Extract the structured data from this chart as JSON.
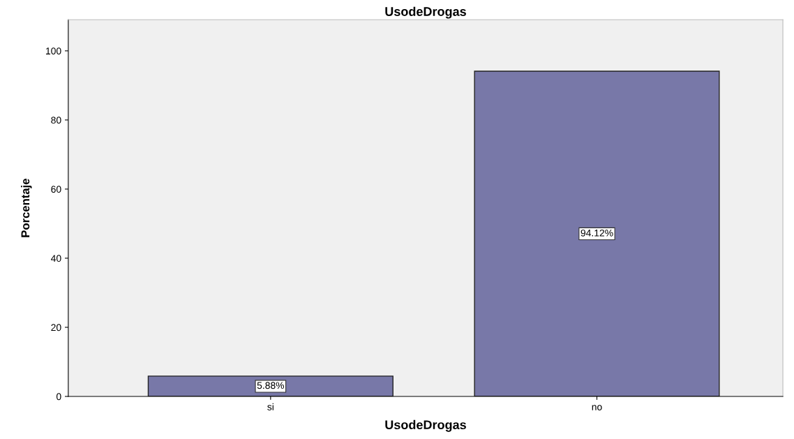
{
  "chart_data": {
    "type": "bar",
    "title": "UsodeDrogas",
    "xlabel": "UsodeDrogas",
    "ylabel": "Porcentaje",
    "categories": [
      "si",
      "no"
    ],
    "values": [
      5.88,
      94.12
    ],
    "value_labels": [
      "5.88%",
      "94.12%"
    ],
    "color": "#7878a8",
    "ylim": [
      0,
      109
    ],
    "yticks": [
      0,
      20,
      40,
      60,
      80,
      100
    ],
    "grid": false,
    "legend": false
  }
}
